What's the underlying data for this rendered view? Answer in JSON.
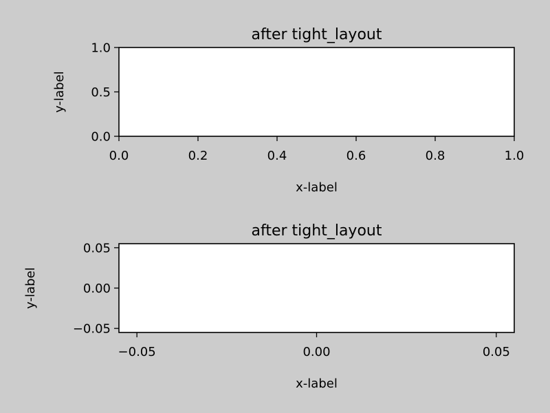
{
  "figure": {
    "background": "#cccccc",
    "axes_face": "#ffffff"
  },
  "chart_data": [
    {
      "type": "line",
      "title": "after tight_layout",
      "xlabel": "x-label",
      "ylabel": "y-label",
      "xlim": [
        0.0,
        1.0
      ],
      "ylim": [
        0.0,
        1.0
      ],
      "xticks": [
        0.0,
        0.2,
        0.4,
        0.6,
        0.8,
        1.0
      ],
      "xtick_labels": [
        "0.0",
        "0.2",
        "0.4",
        "0.6",
        "0.8",
        "1.0"
      ],
      "yticks": [
        0.0,
        0.5,
        1.0
      ],
      "ytick_labels": [
        "0.0",
        "0.5",
        "1.0"
      ],
      "series": [],
      "grid": false
    },
    {
      "type": "line",
      "title": "after tight_layout",
      "xlabel": "x-label",
      "ylabel": "y-label",
      "xlim": [
        -0.055,
        0.055
      ],
      "ylim": [
        -0.055,
        0.055
      ],
      "xticks": [
        -0.05,
        0.0,
        0.05
      ],
      "xtick_labels": [
        "−0.05",
        "0.00",
        "0.05"
      ],
      "yticks": [
        -0.05,
        0.0,
        0.05
      ],
      "ytick_labels": [
        "−0.05",
        "0.00",
        "0.05"
      ],
      "series": [],
      "grid": false
    }
  ]
}
